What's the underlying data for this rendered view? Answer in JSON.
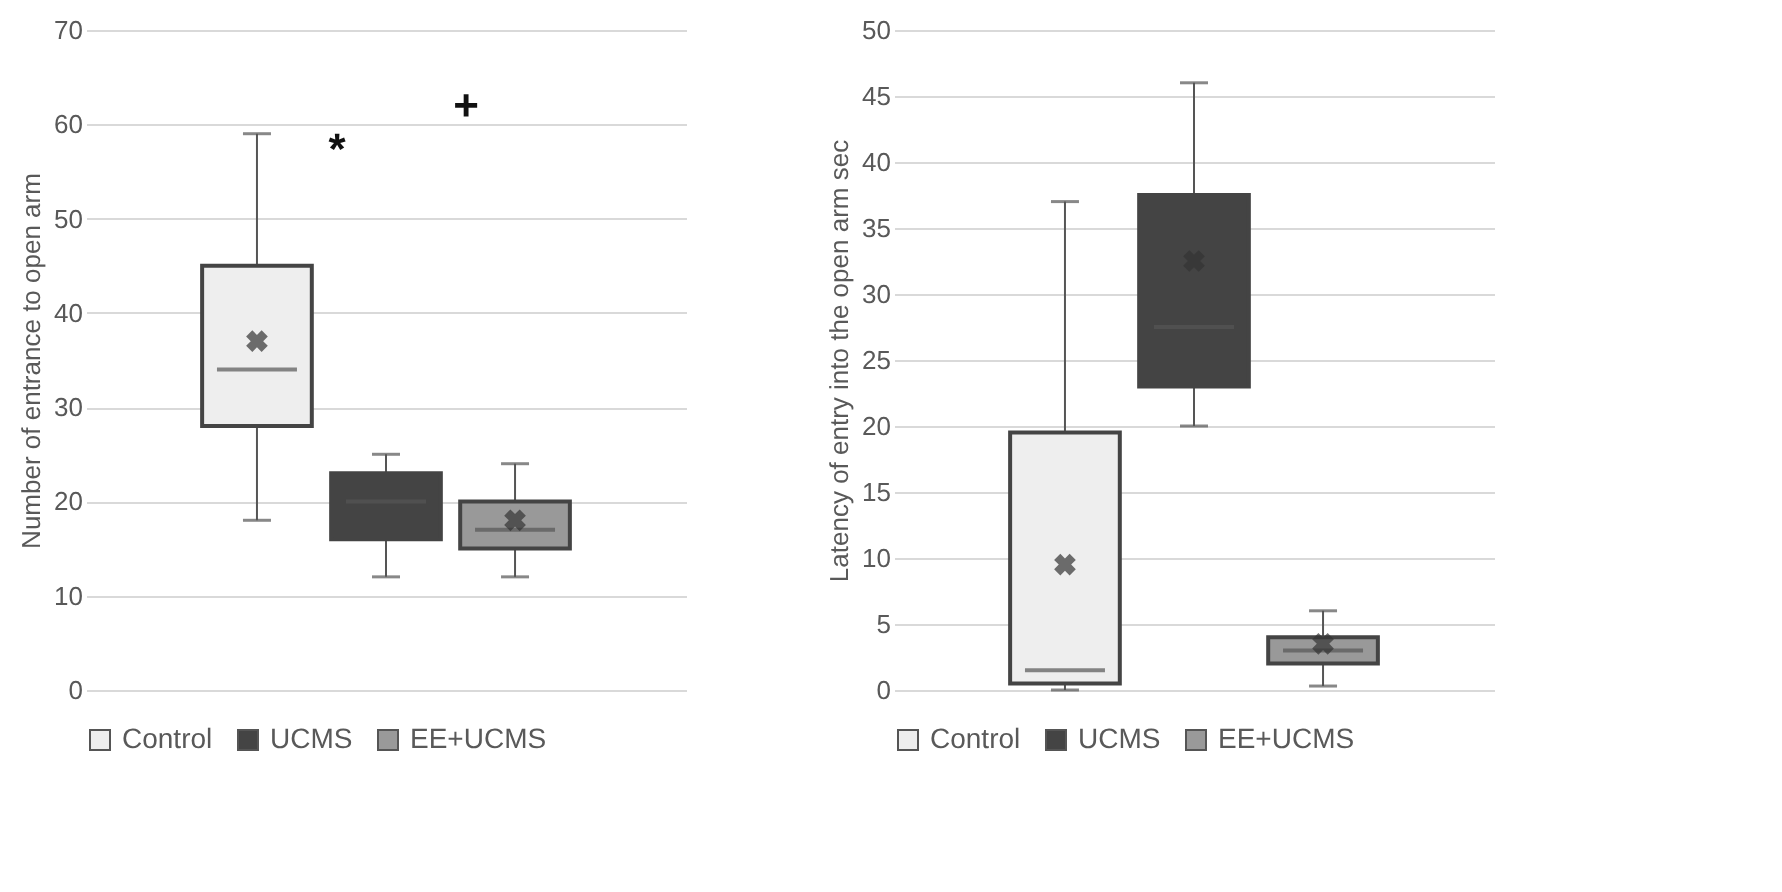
{
  "chart_data": [
    {
      "type": "box",
      "ylabel": "Number of entrance to open arm",
      "categories": [
        null
      ],
      "ylim": [
        0,
        70
      ],
      "yticks": [
        0,
        10,
        20,
        30,
        40,
        50,
        60,
        70
      ],
      "grid": "y",
      "legend": "bottom",
      "annotations": [
        "*",
        "+"
      ],
      "series": [
        {
          "name": "Control",
          "color": "#eeeeee",
          "boxes": [
            {
              "low": 18,
              "q1": 28,
              "median": 34,
              "q3": 45,
              "high": 59,
              "mean": 37
            }
          ]
        },
        {
          "name": "UCMS",
          "color": "#444444",
          "boxes": [
            {
              "low": 12,
              "q1": 16,
              "median": 20,
              "q3": 23,
              "high": 25
            }
          ]
        },
        {
          "name": "EE+UCMS",
          "color": "#999999",
          "boxes": [
            {
              "low": 12,
              "q1": 15,
              "median": 17,
              "q3": 20,
              "high": 24,
              "mean": 18
            }
          ]
        }
      ]
    },
    {
      "type": "box",
      "ylabel": "Latency of entry into the open arm sec",
      "categories": [
        null
      ],
      "ylim": [
        0,
        50
      ],
      "yticks": [
        0,
        5,
        10,
        15,
        20,
        25,
        30,
        35,
        40,
        45,
        50
      ],
      "grid": "y",
      "legend": "bottom",
      "series": [
        {
          "name": "Control",
          "color": "#eeeeee",
          "boxes": [
            {
              "low": 0,
              "q1": 0.5,
              "median": 1.5,
              "q3": 19.5,
              "high": 37,
              "mean": 9.5
            }
          ]
        },
        {
          "name": "UCMS",
          "color": "#444444",
          "boxes": [
            {
              "low": 20,
              "q1": 23,
              "median": 27.5,
              "q3": 37.5,
              "high": 46,
              "mean": 32.5
            }
          ]
        },
        {
          "name": "EE+UCMS",
          "color": "#999999",
          "boxes": [
            {
              "low": 0.3,
              "q1": 2,
              "median": 3,
              "q3": 4,
              "high": 6,
              "mean": 3.5
            }
          ]
        }
      ]
    }
  ]
}
